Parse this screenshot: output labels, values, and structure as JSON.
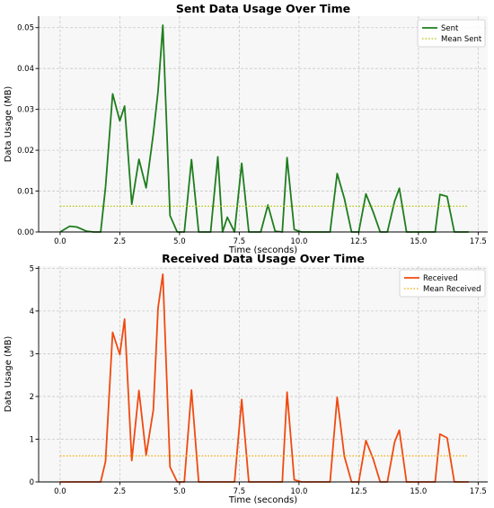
{
  "chart_data": [
    {
      "type": "line",
      "title": "Sent Data Usage Over Time",
      "xlabel": "Time (seconds)",
      "ylabel": "Data Usage (MB)",
      "xlim": [
        -0.9,
        17.9
      ],
      "ylim": [
        0,
        0.0528
      ],
      "xticks": [
        0.0,
        2.5,
        5.0,
        7.5,
        10.0,
        12.5,
        15.0,
        17.5
      ],
      "xtick_labels": [
        "0.0",
        "2.5",
        "5.0",
        "7.5",
        "10.0",
        "12.5",
        "15.0",
        "17.5"
      ],
      "yticks": [
        0.0,
        0.01,
        0.02,
        0.03,
        0.04,
        0.05
      ],
      "ytick_labels": [
        "0.00",
        "0.01",
        "0.02",
        "0.03",
        "0.04",
        "0.05"
      ],
      "grid": true,
      "legend_position": "top-right",
      "series": [
        {
          "name": "Sent",
          "color": "#1e7d1e",
          "style": "solid",
          "x": [
            0,
            0.4,
            0.7,
            1.1,
            1.4,
            1.7,
            1.9,
            2.2,
            2.5,
            2.7,
            3.0,
            3.3,
            3.6,
            3.9,
            4.1,
            4.3,
            4.6,
            4.9,
            5.2,
            5.5,
            5.8,
            6.0,
            6.3,
            6.6,
            6.8,
            7.0,
            7.3,
            7.6,
            7.9,
            8.2,
            8.4,
            8.7,
            9.0,
            9.3,
            9.5,
            9.8,
            10.1,
            10.4,
            10.7,
            11.0,
            11.3,
            11.6,
            11.9,
            12.2,
            12.5,
            12.8,
            13.1,
            13.4,
            13.7,
            14.0,
            14.2,
            14.5,
            14.8,
            15.1,
            15.4,
            15.7,
            15.9,
            16.2,
            16.5,
            16.8,
            17.1
          ],
          "values": [
            0.0,
            0.0014,
            0.0012,
            0.0002,
            0.0,
            0.0,
            0.011,
            0.0338,
            0.0272,
            0.0308,
            0.0068,
            0.0178,
            0.0108,
            0.024,
            0.0345,
            0.0506,
            0.004,
            0.0,
            0.0,
            0.0177,
            0.0,
            0.0,
            0.0,
            0.0184,
            0.0,
            0.0036,
            0.0,
            0.0168,
            0.0,
            0.0,
            0.0,
            0.0066,
            0.0002,
            0.0,
            0.0182,
            0.0006,
            0.0,
            0.0,
            0.0,
            0.0,
            0.0,
            0.0143,
            0.0082,
            0.0,
            0.0,
            0.0093,
            0.005,
            0.0,
            0.0,
            0.0075,
            0.0107,
            0.0,
            0.0,
            0.0,
            0.0,
            0.0,
            0.0092,
            0.0087,
            0.0,
            0.0,
            0.0
          ]
        },
        {
          "name": "Mean Sent",
          "color": "#b5c300",
          "style": "dotted",
          "x": [
            0,
            17.1
          ],
          "values": [
            0.0063,
            0.0063
          ]
        }
      ]
    },
    {
      "type": "line",
      "title": "Received Data Usage Over Time",
      "xlabel": "Time (seconds)",
      "ylabel": "Data Usage (MB)",
      "xlim": [
        -0.9,
        17.9
      ],
      "ylim": [
        0,
        5.05
      ],
      "xticks": [
        0.0,
        2.5,
        5.0,
        7.5,
        10.0,
        12.5,
        15.0,
        17.5
      ],
      "xtick_labels": [
        "0.0",
        "2.5",
        "5.0",
        "7.5",
        "10.0",
        "12.5",
        "15.0",
        "17.5"
      ],
      "yticks": [
        0,
        1,
        2,
        3,
        4,
        5
      ],
      "ytick_labels": [
        "0",
        "1",
        "2",
        "3",
        "4",
        "5"
      ],
      "grid": true,
      "legend_position": "top-right",
      "series": [
        {
          "name": "Received",
          "color": "#f04a10",
          "style": "solid",
          "x": [
            0,
            0.4,
            0.7,
            1.1,
            1.4,
            1.7,
            1.9,
            2.2,
            2.5,
            2.7,
            3.0,
            3.3,
            3.6,
            3.9,
            4.1,
            4.3,
            4.6,
            4.9,
            5.2,
            5.5,
            5.8,
            6.0,
            6.3,
            6.6,
            6.8,
            7.0,
            7.3,
            7.6,
            7.9,
            8.2,
            8.4,
            8.7,
            9.0,
            9.3,
            9.5,
            9.8,
            10.1,
            10.4,
            10.7,
            11.0,
            11.3,
            11.6,
            11.9,
            12.2,
            12.5,
            12.8,
            13.1,
            13.4,
            13.7,
            14.0,
            14.2,
            14.5,
            14.8,
            15.1,
            15.4,
            15.7,
            15.9,
            16.2,
            16.5,
            16.8,
            17.1
          ],
          "values": [
            0.0,
            0.0,
            0.0,
            0.0,
            0.0,
            0.0,
            0.48,
            3.5,
            2.98,
            3.81,
            0.5,
            2.14,
            0.63,
            1.68,
            4.08,
            4.86,
            0.35,
            0.0,
            0.0,
            2.15,
            0.0,
            0.0,
            0.0,
            0.0,
            0.0,
            0.0,
            0.0,
            1.93,
            0.0,
            0.0,
            0.0,
            0.0,
            0.0,
            0.0,
            2.1,
            0.05,
            0.0,
            0.0,
            0.0,
            0.0,
            0.0,
            1.98,
            0.6,
            0.0,
            0.0,
            0.97,
            0.55,
            0.0,
            0.0,
            0.93,
            1.21,
            0.0,
            0.0,
            0.0,
            0.0,
            0.0,
            1.12,
            1.03,
            0.0,
            0.0,
            0.0
          ]
        },
        {
          "name": "Mean Received",
          "color": "#f0a800",
          "style": "dotted",
          "x": [
            0,
            17.1
          ],
          "values": [
            0.61,
            0.61
          ]
        }
      ]
    }
  ]
}
